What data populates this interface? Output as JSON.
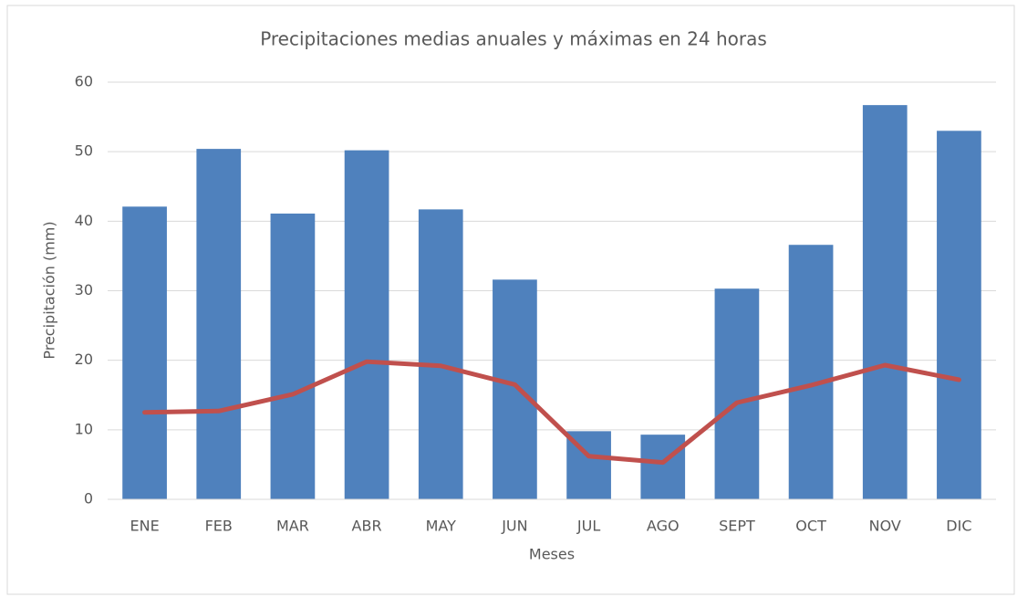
{
  "chart_data": {
    "type": "bar",
    "title": "Precipitaciones medias anuales y máximas  en 24 horas",
    "x_label": "Meses",
    "y_label": "Precipitación (mm)",
    "categories": [
      "ENE",
      "FEB",
      "MAR",
      "ABR",
      "MAY",
      "JUN",
      "JUL",
      "AGO",
      "SEPT",
      "OCT",
      "NOV",
      "DIC"
    ],
    "series": [
      {
        "type": "bar",
        "color": "#4f81bd",
        "values": [
          42.1,
          50.4,
          41.1,
          50.2,
          41.7,
          31.6,
          9.8,
          9.3,
          30.3,
          36.6,
          56.7,
          53.0
        ]
      },
      {
        "type": "line",
        "color": "#c0504d",
        "values": [
          12.5,
          12.7,
          15.1,
          19.8,
          19.2,
          16.5,
          6.2,
          5.3,
          13.9,
          16.4,
          19.3,
          17.2
        ]
      }
    ],
    "ylim": [
      0,
      60
    ],
    "yticks": [
      0,
      10,
      20,
      30,
      40,
      50,
      60
    ],
    "grid": true
  }
}
